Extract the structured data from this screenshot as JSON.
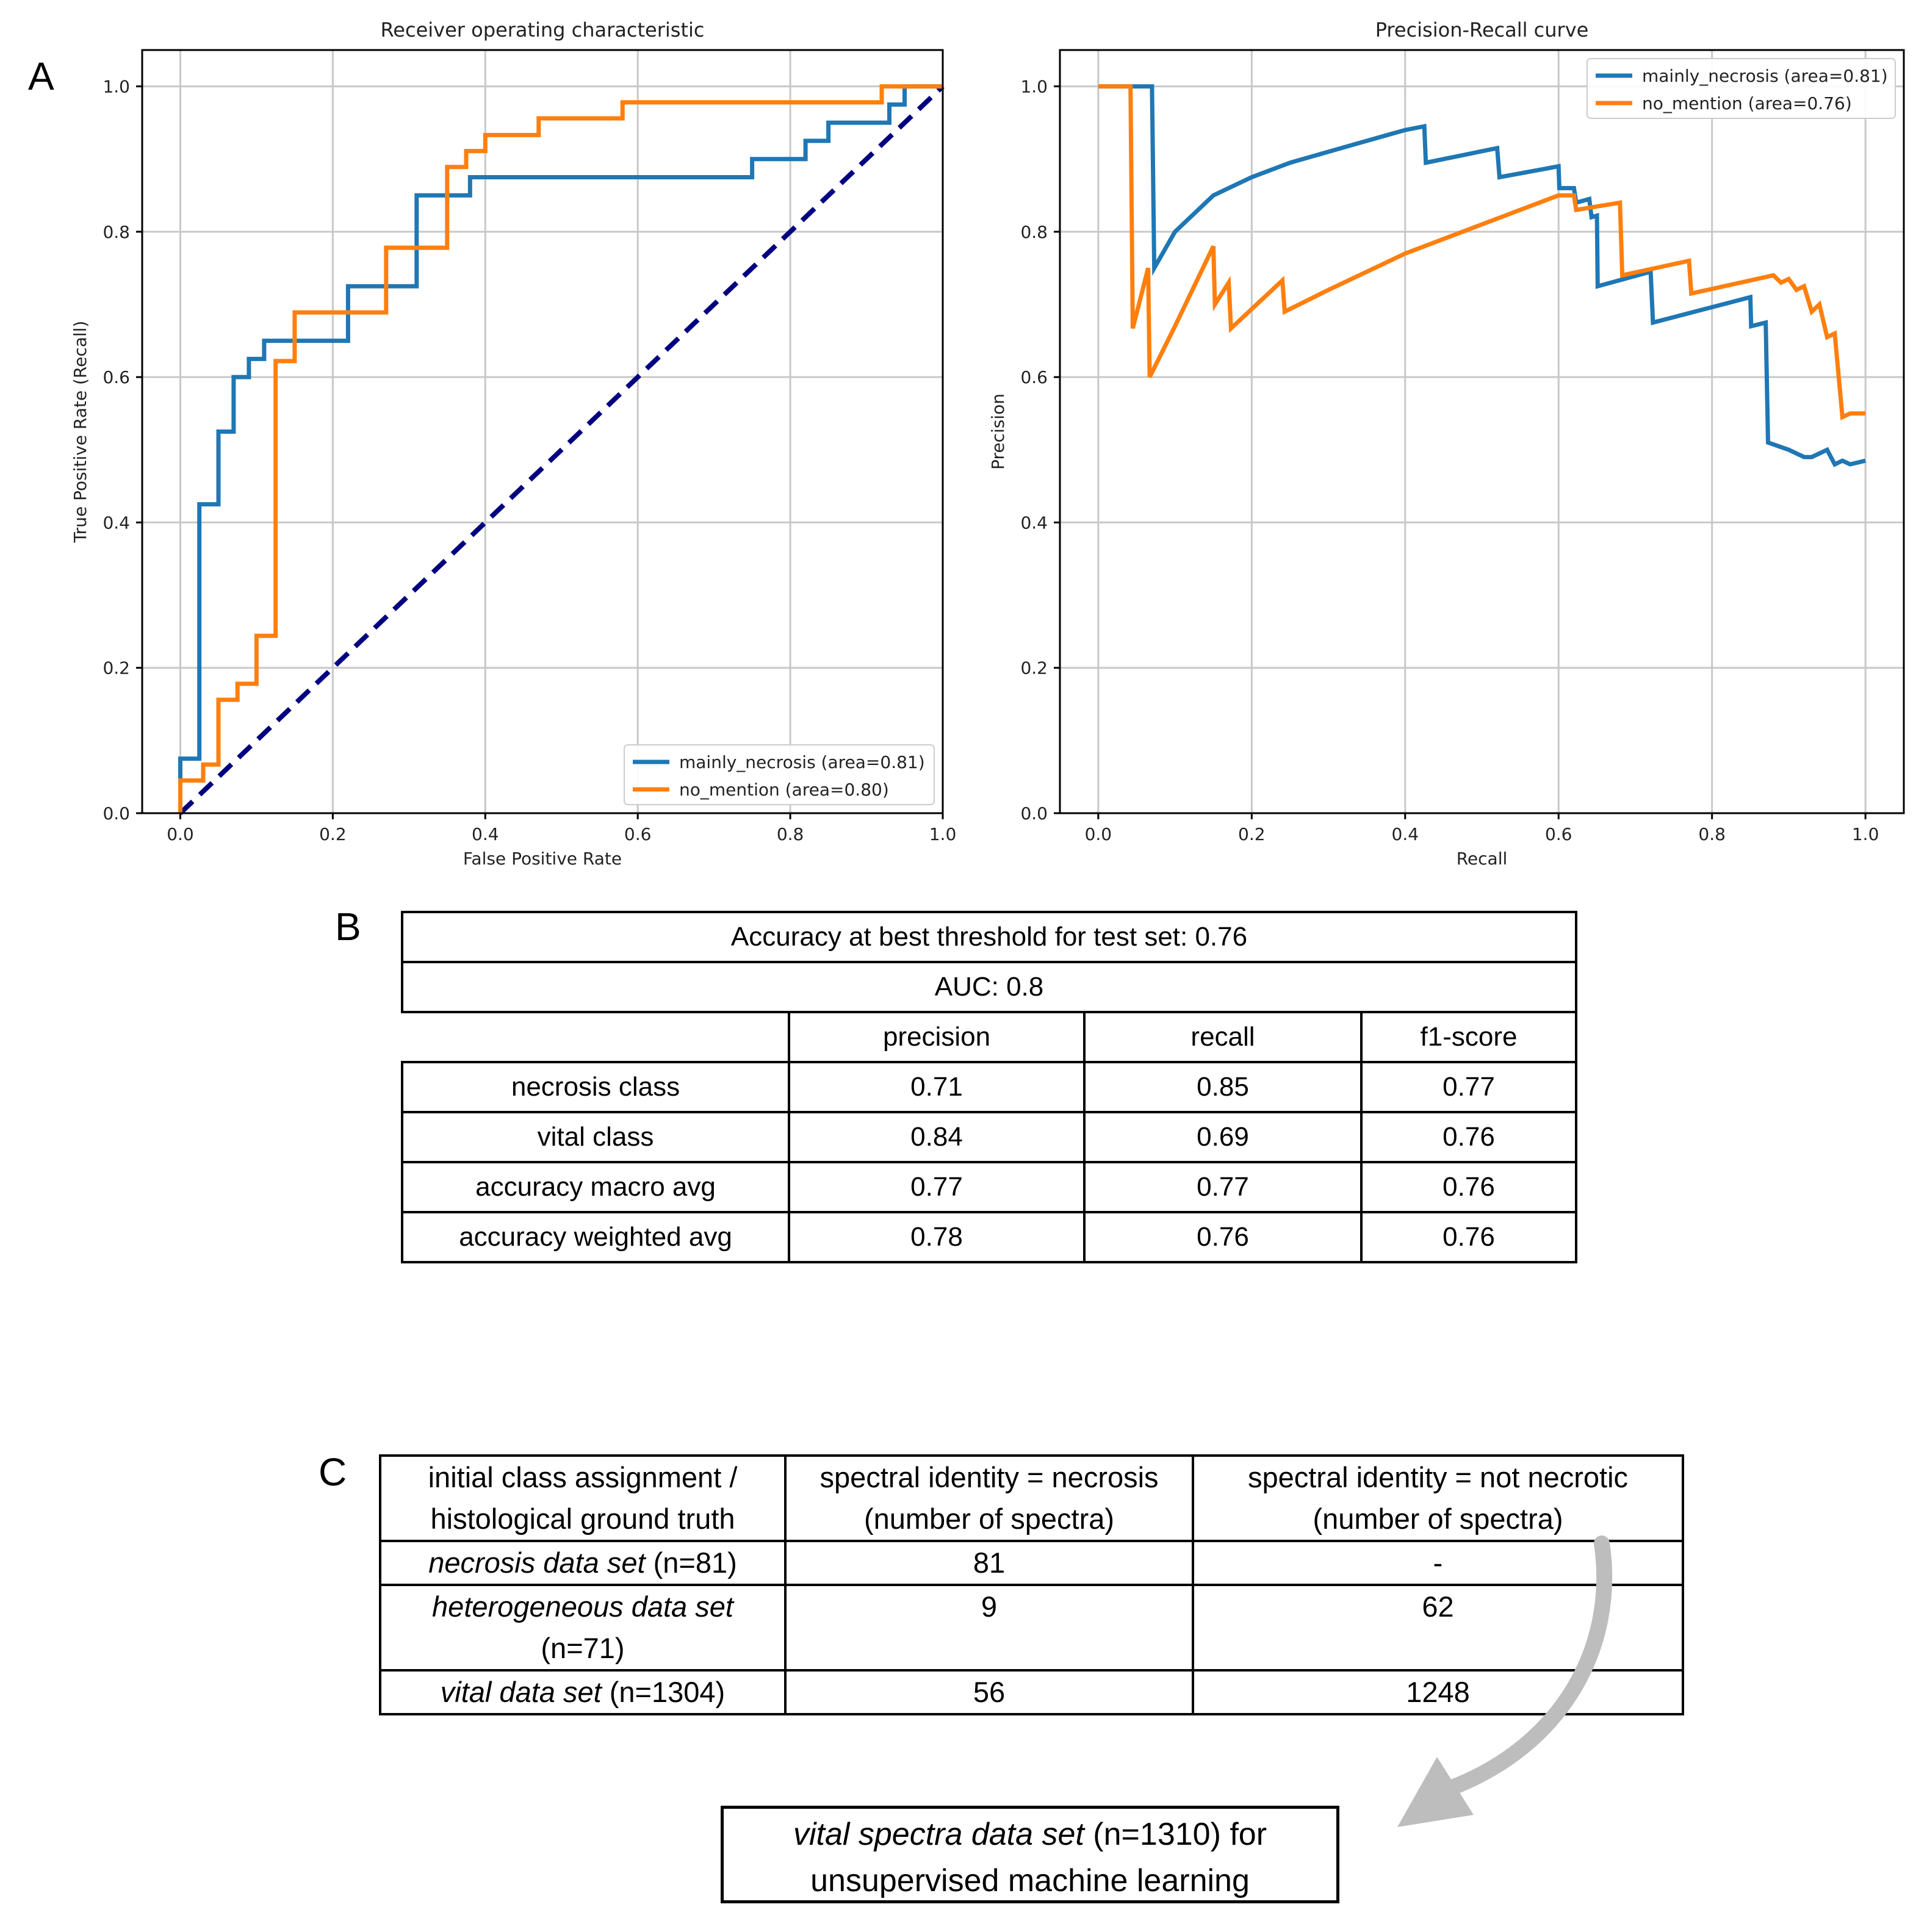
{
  "panel_labels": {
    "a": "A",
    "b": "B",
    "c": "C"
  },
  "colors": {
    "series1": "#1f77b4",
    "series2": "#ff7f0e",
    "diagonal": "#000080",
    "grid": "#c8c8c8"
  },
  "chart_data": [
    {
      "type": "line",
      "title": "Receiver operating characteristic",
      "xlabel": "False Positive Rate",
      "ylabel": "True Positive Rate (Recall)",
      "xlim": [
        -0.05,
        1.0
      ],
      "ylim": [
        0.0,
        1.05
      ],
      "xticks": [
        "0.0",
        "0.2",
        "0.4",
        "0.6",
        "0.8",
        "1.0"
      ],
      "yticks": [
        "0.0",
        "0.2",
        "0.4",
        "0.6",
        "0.8",
        "1.0"
      ],
      "grid": true,
      "legend_position": "lower-right",
      "diagonal": {
        "x": [
          0,
          1
        ],
        "y": [
          0,
          1
        ],
        "style": "dashed"
      },
      "series": [
        {
          "name": "mainly_necrosis (area=0.81)",
          "x": [
            0,
            0,
            0.025,
            0.025,
            0.05,
            0.05,
            0.07,
            0.07,
            0.09,
            0.09,
            0.11,
            0.11,
            0.22,
            0.22,
            0.27,
            0.31,
            0.31,
            0.35,
            0.35,
            0.38,
            0.38,
            0.75,
            0.75,
            0.82,
            0.82,
            0.85,
            0.85,
            0.93,
            0.93,
            0.95,
            0.95,
            1.0
          ],
          "y": [
            0,
            0.075,
            0.075,
            0.425,
            0.425,
            0.525,
            0.525,
            0.6,
            0.6,
            0.625,
            0.625,
            0.65,
            0.65,
            0.725,
            0.725,
            0.725,
            0.85,
            0.85,
            0.85,
            0.85,
            0.875,
            0.875,
            0.9,
            0.9,
            0.925,
            0.925,
            0.95,
            0.95,
            0.975,
            0.975,
            1.0,
            1.0
          ]
        },
        {
          "name": "no_mention (area=0.80)",
          "x": [
            0,
            0,
            0.03,
            0.03,
            0.05,
            0.05,
            0.075,
            0.075,
            0.1,
            0.1,
            0.125,
            0.125,
            0.15,
            0.15,
            0.27,
            0.27,
            0.31,
            0.31,
            0.35,
            0.35,
            0.375,
            0.375,
            0.4,
            0.4,
            0.47,
            0.47,
            0.58,
            0.58,
            0.92,
            0.92,
            1.0
          ],
          "y": [
            0,
            0.045,
            0.045,
            0.067,
            0.067,
            0.156,
            0.156,
            0.178,
            0.178,
            0.244,
            0.244,
            0.622,
            0.622,
            0.689,
            0.689,
            0.778,
            0.778,
            0.778,
            0.778,
            0.889,
            0.889,
            0.911,
            0.911,
            0.933,
            0.933,
            0.956,
            0.956,
            0.978,
            0.978,
            1.0,
            1.0
          ]
        }
      ]
    },
    {
      "type": "line",
      "title": "Precision-Recall curve",
      "xlabel": "Recall",
      "ylabel": "Precision",
      "xlim": [
        -0.05,
        1.05
      ],
      "ylim": [
        0.0,
        1.05
      ],
      "xticks": [
        "0.0",
        "0.2",
        "0.4",
        "0.6",
        "0.8",
        "1.0"
      ],
      "yticks": [
        "0.0",
        "0.2",
        "0.4",
        "0.6",
        "0.8",
        "1.0"
      ],
      "grid": true,
      "legend_position": "upper-right",
      "series": [
        {
          "name": "mainly_necrosis (area=0.81)",
          "x": [
            0,
            0.07,
            0.073,
            0.1,
            0.15,
            0.2,
            0.25,
            0.3,
            0.35,
            0.4,
            0.425,
            0.427,
            0.52,
            0.523,
            0.6,
            0.601,
            0.62,
            0.623,
            0.64,
            0.643,
            0.65,
            0.651,
            0.72,
            0.723,
            0.85,
            0.851,
            0.87,
            0.873,
            0.9,
            0.92,
            0.93,
            0.95,
            0.96,
            0.97,
            0.98,
            1.0
          ],
          "y": [
            1.0,
            1.0,
            0.75,
            0.8,
            0.85,
            0.875,
            0.895,
            0.91,
            0.925,
            0.94,
            0.945,
            0.895,
            0.915,
            0.875,
            0.89,
            0.86,
            0.86,
            0.84,
            0.845,
            0.82,
            0.822,
            0.725,
            0.745,
            0.675,
            0.71,
            0.67,
            0.675,
            0.51,
            0.5,
            0.49,
            0.49,
            0.5,
            0.48,
            0.485,
            0.48,
            0.485
          ]
        },
        {
          "name": "no_mention (area=0.76)",
          "x": [
            0,
            0.042,
            0.045,
            0.065,
            0.067,
            0.1,
            0.15,
            0.152,
            0.17,
            0.173,
            0.24,
            0.243,
            0.3,
            0.4,
            0.5,
            0.6,
            0.62,
            0.623,
            0.68,
            0.683,
            0.77,
            0.773,
            0.88,
            0.89,
            0.9,
            0.91,
            0.92,
            0.93,
            0.94,
            0.95,
            0.96,
            0.97,
            0.98,
            1.0
          ],
          "y": [
            1.0,
            1.0,
            0.667,
            0.75,
            0.6,
            0.67,
            0.78,
            0.7,
            0.73,
            0.667,
            0.733,
            0.69,
            0.72,
            0.77,
            0.81,
            0.85,
            0.85,
            0.83,
            0.84,
            0.74,
            0.76,
            0.715,
            0.74,
            0.73,
            0.735,
            0.72,
            0.725,
            0.69,
            0.7,
            0.655,
            0.66,
            0.545,
            0.55,
            0.55
          ]
        }
      ]
    }
  ],
  "table_b": {
    "accuracy_line": "Accuracy at best threshold for test set: 0.76",
    "auc_line": "AUC: 0.8",
    "headers": [
      "precision",
      "recall",
      "f1-score"
    ],
    "rows": [
      {
        "label": "necrosis class",
        "values": [
          "0.71",
          "0.85",
          "0.77"
        ]
      },
      {
        "label": "vital class",
        "values": [
          "0.84",
          "0.69",
          "0.76"
        ]
      },
      {
        "label": "accuracy macro avg",
        "values": [
          "0.77",
          "0.77",
          "0.76"
        ]
      },
      {
        "label": "accuracy weighted avg",
        "values": [
          "0.78",
          "0.76",
          "0.76"
        ]
      }
    ]
  },
  "table_c": {
    "headers": [
      {
        "line1": "initial class assignment /",
        "line2": "histological ground truth"
      },
      {
        "line1": "spectral identity = necrosis",
        "line2": "(number of spectra)"
      },
      {
        "line1": "spectral identity  = not necrotic",
        "line2": "(number of spectra)"
      }
    ],
    "rows": [
      {
        "label_italic": "necrosis data set",
        "label_rest": " (n=81)",
        "values": [
          "81",
          "-"
        ]
      },
      {
        "label_italic": "heterogeneous data set",
        "label_rest": "(n=71)",
        "values": [
          "9",
          "62"
        ]
      },
      {
        "label_italic": "vital data set",
        "label_rest": " (n=1304)",
        "values": [
          "56",
          "1248"
        ]
      }
    ]
  },
  "output_box": {
    "italic": "vital spectra data set",
    "rest": " (n=1310) for",
    "line2": "unsupervised machine learning"
  }
}
